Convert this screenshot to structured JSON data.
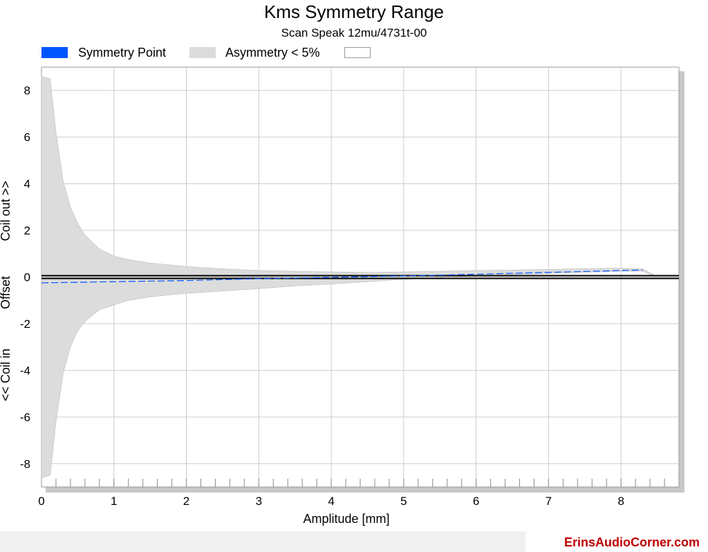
{
  "chart_data": {
    "type": "area",
    "title": "Kms Symmetry Range",
    "subtitle": "Scan Speak 12mu/4731t-00",
    "xlabel": "Amplitude [mm]",
    "ylabel_parts": [
      "<< Coil in",
      "Offset",
      "Coil out >>"
    ],
    "xlim": [
      0,
      8.8
    ],
    "ylim": [
      -9,
      9
    ],
    "xticks": [
      0,
      1,
      2,
      3,
      4,
      5,
      6,
      7,
      8
    ],
    "yticks": [
      -8,
      -6,
      -4,
      -2,
      0,
      2,
      4,
      6,
      8
    ],
    "grid": true,
    "legend_position": "top-left",
    "legend": [
      "Symmetry Point",
      "Asymmetry < 5%",
      ""
    ],
    "series": [
      {
        "name": "Asymmetry < 5%",
        "x": [
          0,
          0.12,
          0.2,
          0.3,
          0.4,
          0.5,
          0.6,
          0.8,
          1.0,
          1.2,
          1.5,
          2.0,
          2.5,
          3.0,
          3.5,
          4.0,
          4.5,
          5.0,
          5.5,
          6.0,
          6.5,
          7.0,
          7.5,
          8.0,
          8.3,
          8.45
        ],
        "upper": [
          8.6,
          8.5,
          6.2,
          4.1,
          3.0,
          2.3,
          1.8,
          1.2,
          0.9,
          0.75,
          0.6,
          0.45,
          0.35,
          0.28,
          0.25,
          0.22,
          0.2,
          0.22,
          0.25,
          0.28,
          0.3,
          0.33,
          0.36,
          0.38,
          0.35,
          0.1
        ],
        "lower": [
          -8.6,
          -8.5,
          -6.2,
          -4.1,
          -3.0,
          -2.3,
          -1.9,
          -1.4,
          -1.2,
          -1.0,
          -0.85,
          -0.7,
          -0.6,
          -0.5,
          -0.38,
          -0.3,
          -0.2,
          -0.1,
          -0.02,
          0.05,
          0.1,
          0.15,
          0.2,
          0.25,
          0.25,
          0.05
        ]
      },
      {
        "name": "Symmetry Point",
        "x": [
          0,
          1,
          2,
          3,
          3.4,
          5.5,
          6,
          7,
          8,
          8.3
        ],
        "y": [
          -0.25,
          -0.2,
          -0.15,
          -0.07,
          -0.05,
          0.08,
          0.12,
          0.2,
          0.28,
          0.3
        ]
      }
    ],
    "colors": {
      "symmetry": "#0055ff",
      "band": "#dcdcdc",
      "band_edge": "#bdbdbd",
      "zero_line": "#000000",
      "grid": "#cccccc"
    }
  },
  "footer": {
    "site": "ErinsAudioCorner.com"
  }
}
